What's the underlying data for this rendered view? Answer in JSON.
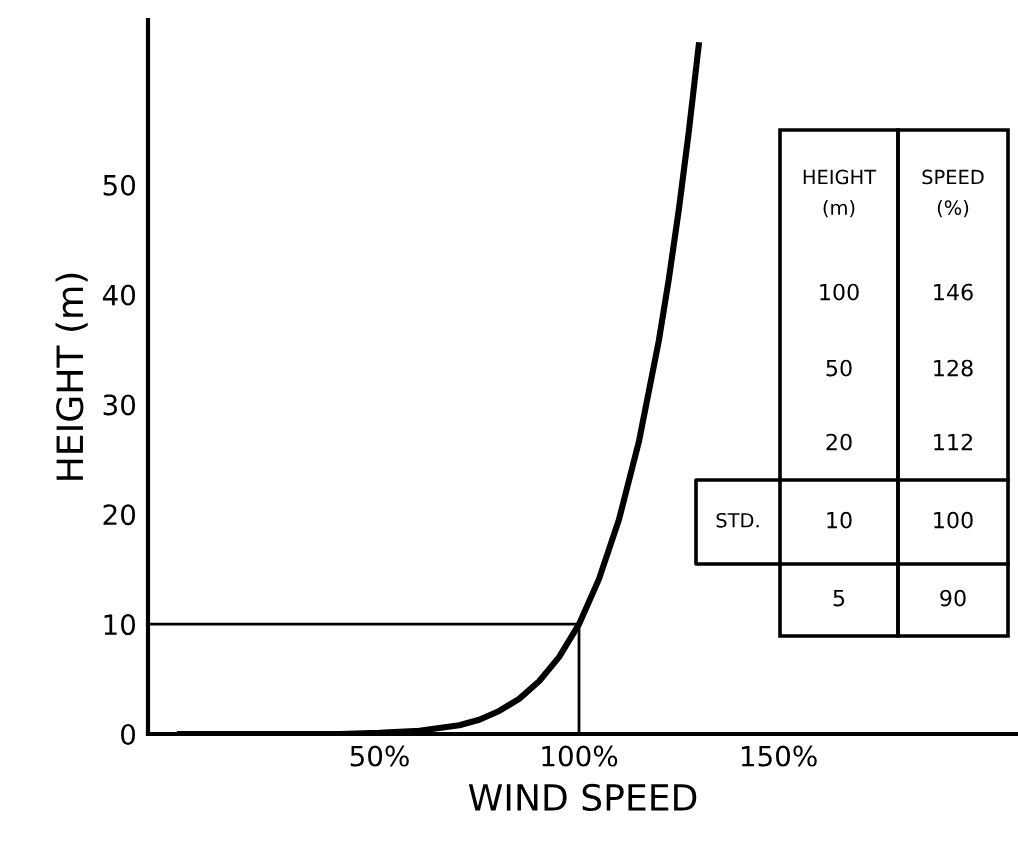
{
  "chart_data": [
    {
      "type": "line",
      "xlabel": "WIND SPEED",
      "ylabel": "HEIGHT (m)",
      "x": [
        0,
        40,
        50,
        60,
        70,
        75,
        80,
        85,
        90,
        95,
        100,
        105,
        110,
        115,
        120,
        122.5,
        125,
        127.5,
        130
      ],
      "values": [
        0,
        0,
        0.1,
        0.3,
        0.8,
        1.3,
        2.1,
        3.2,
        4.8,
        7,
        10,
        14.1,
        19.5,
        26.6,
        35.8,
        41.4,
        47.7,
        54.8,
        62.7
      ],
      "color": "#000000",
      "xlim": [
        -8,
        210
      ],
      "ylim": [
        0,
        65
      ],
      "xticks": [
        {
          "value": 50,
          "label": "50%"
        },
        {
          "value": 100,
          "label": "100%"
        },
        {
          "value": 150,
          "label": "150%"
        }
      ],
      "yticks": [
        0,
        10,
        20,
        30,
        40,
        50
      ],
      "grid": false,
      "marker": "none",
      "line_style": "solid",
      "ref_lines": [
        {
          "axis": "y",
          "value": 10,
          "color": "#000000"
        },
        {
          "axis": "x",
          "value": 100,
          "color": "#000000"
        }
      ]
    },
    {
      "type": "other",
      "categories": [
        "HEIGHT\n(m)",
        "SPEED\n(%)"
      ],
      "y_categories": [
        null,
        null,
        null,
        "STD.",
        null
      ],
      "cell_labels": [
        [
          "100",
          "146"
        ],
        [
          "50",
          "128"
        ],
        [
          "20",
          "112"
        ],
        [
          "10",
          "100"
        ],
        [
          "5",
          "90"
        ]
      ]
    }
  ]
}
